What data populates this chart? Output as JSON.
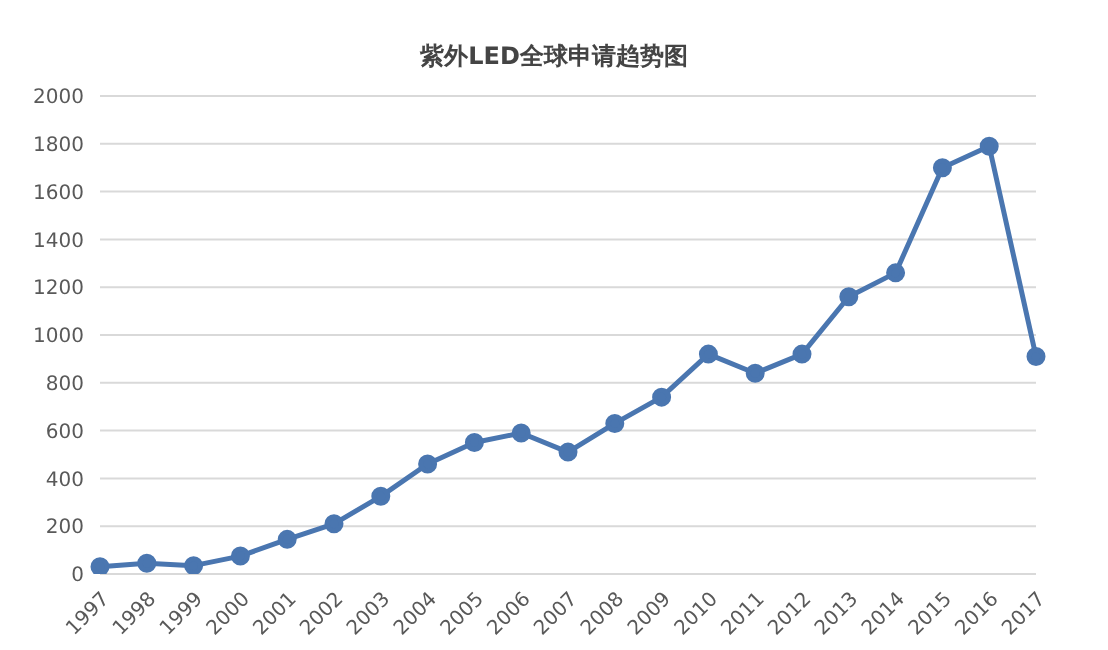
{
  "chart_data": {
    "type": "line",
    "title": "紫外LED全球申请趋势图",
    "categories": [
      "1997",
      "1998",
      "1999",
      "2000",
      "2001",
      "2002",
      "2003",
      "2004",
      "2005",
      "2006",
      "2007",
      "2008",
      "2009",
      "2010",
      "2011",
      "2012",
      "2013",
      "2014",
      "2015",
      "2016",
      "2017"
    ],
    "values": [
      30,
      45,
      35,
      75,
      145,
      210,
      325,
      460,
      550,
      590,
      510,
      630,
      740,
      920,
      840,
      920,
      1160,
      1260,
      1700,
      1790,
      910
    ],
    "color": "#4a76b0",
    "ylim": [
      0,
      2000
    ],
    "yticks": [
      0,
      200,
      400,
      600,
      800,
      1000,
      1200,
      1400,
      1600,
      1800,
      2000
    ],
    "grid": "y",
    "marker": "circle",
    "line_style": "solid"
  }
}
